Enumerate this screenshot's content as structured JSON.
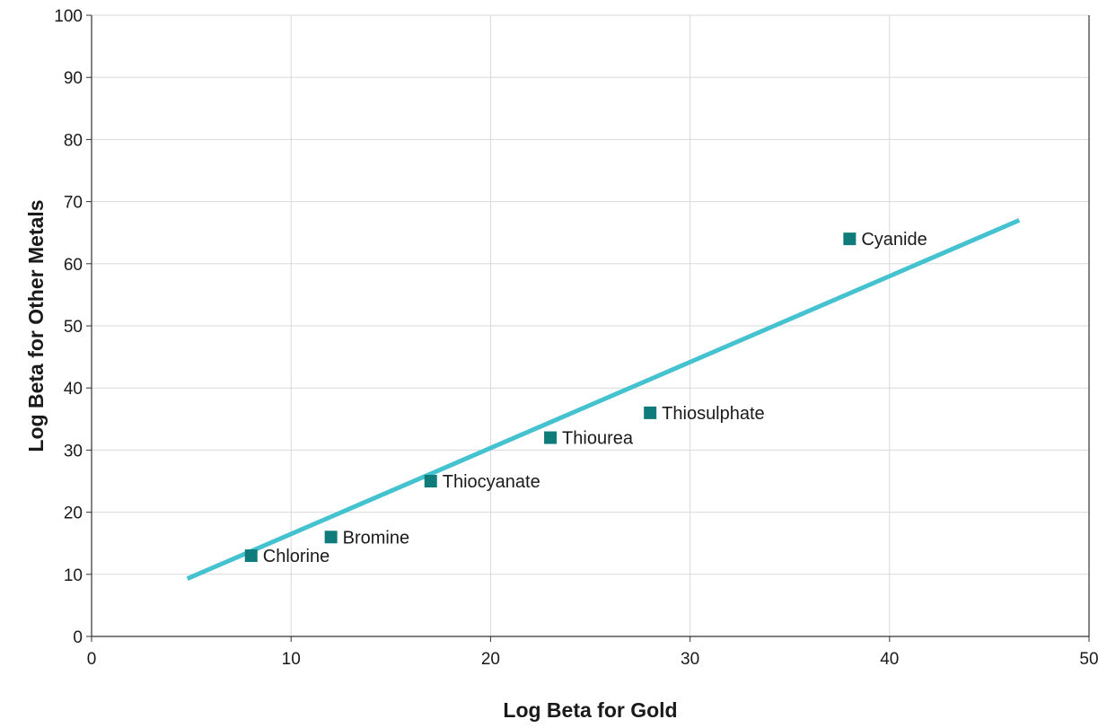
{
  "chart_data": {
    "type": "scatter",
    "xlabel": "Log Beta for Gold",
    "ylabel": "Log Beta for Other Metals",
    "xlim": [
      0,
      50
    ],
    "ylim": [
      0,
      100
    ],
    "x_ticks": [
      0,
      10,
      20,
      30,
      40,
      50
    ],
    "y_ticks": [
      0,
      10,
      20,
      30,
      40,
      50,
      60,
      70,
      80,
      90,
      100
    ],
    "grid": true,
    "points": [
      {
        "label": "Chlorine",
        "x": 8,
        "y": 13
      },
      {
        "label": "Bromine",
        "x": 12,
        "y": 16
      },
      {
        "label": "Thiocyanate",
        "x": 17,
        "y": 25
      },
      {
        "label": "Thiourea",
        "x": 23,
        "y": 32
      },
      {
        "label": "Thiosulphate",
        "x": 28,
        "y": 36
      },
      {
        "label": "Cyanide",
        "x": 38,
        "y": 64
      }
    ],
    "trendline": {
      "x": [
        4.8,
        46.5
      ],
      "y": [
        9.3,
        67
      ]
    },
    "colors": {
      "marker": "#0f7b7b",
      "trendline": "#45c2cf",
      "grid": "#d9d9d9",
      "axis": "#333333"
    }
  }
}
